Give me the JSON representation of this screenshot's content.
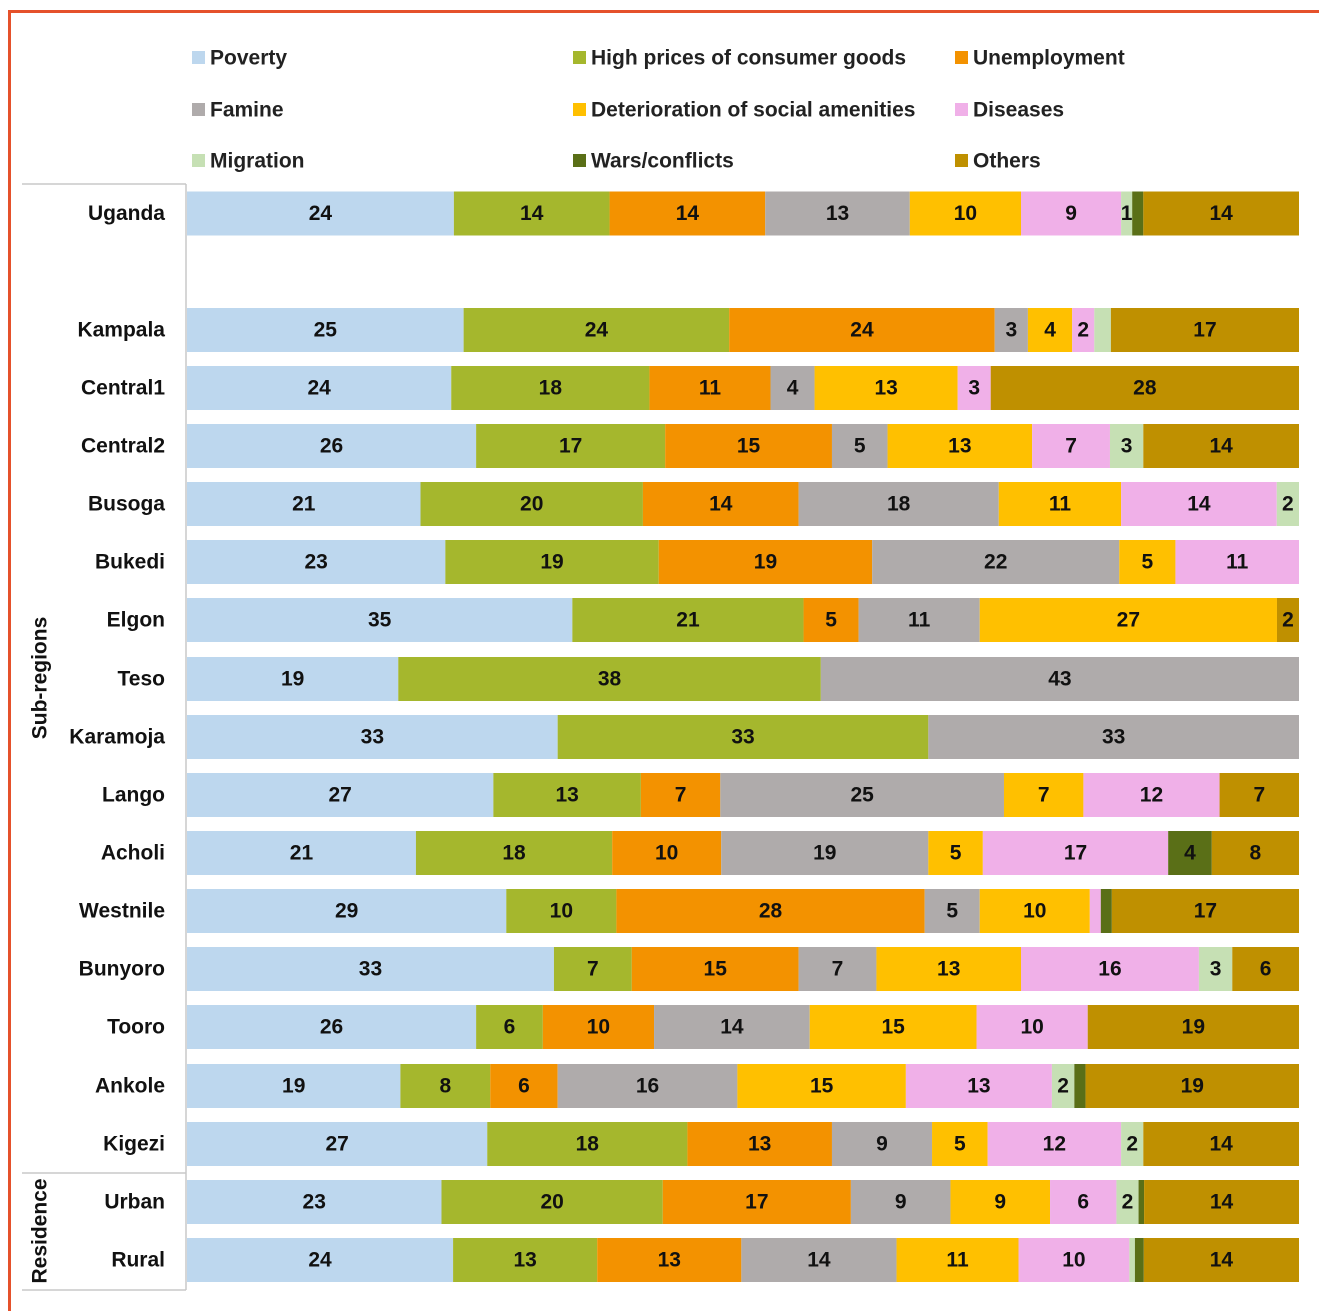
{
  "chart_data": {
    "type": "bar",
    "orientation": "horizontal",
    "stacked": true,
    "legend_position": "top",
    "grid": false,
    "legend": [
      {
        "name": "Poverty",
        "color": "#bdd7ee"
      },
      {
        "name": "High prices of consumer goods",
        "color": "#a5b72d"
      },
      {
        "name": "Unemployment",
        "color": "#f39200"
      },
      {
        "name": "Famine",
        "color": "#afabab"
      },
      {
        "name": "Deterioration of social amenities",
        "color": "#ffc000"
      },
      {
        "name": "Diseases",
        "color": "#f0b0e8"
      },
      {
        "name": "Migration",
        "color": "#c6e0b4"
      },
      {
        "name": "Wars/conflicts",
        "color": "#5a6f17"
      },
      {
        "name": "Others",
        "color": "#bf9000"
      }
    ],
    "groups": [
      {
        "label": "Sub-regions",
        "from": "Kampala",
        "to": "Kigezi"
      },
      {
        "label": "Residence",
        "from": "Urban",
        "to": "Rural"
      }
    ],
    "rows": [
      {
        "category": "Uganda",
        "values": [
          24,
          14,
          14,
          13,
          10,
          9,
          1,
          1,
          14
        ],
        "labels": [
          "24",
          "14",
          "14",
          "13",
          "10",
          "9",
          "1",
          "",
          "14"
        ]
      },
      {
        "category": "Kampala",
        "values": [
          25,
          24,
          24,
          3,
          4,
          2,
          1.5,
          0,
          17
        ],
        "labels": [
          "25",
          "24",
          "24",
          "3",
          "4",
          "2",
          "",
          "",
          "17"
        ]
      },
      {
        "category": "Central1",
        "values": [
          24,
          18,
          11,
          4,
          13,
          3,
          0,
          0,
          28
        ],
        "labels": [
          "24",
          "18",
          "11",
          "4",
          "13",
          "3",
          "",
          "",
          "28"
        ]
      },
      {
        "category": "Central2",
        "values": [
          26,
          17,
          15,
          5,
          13,
          7,
          3,
          0,
          14
        ],
        "labels": [
          "26",
          "17",
          "15",
          "5",
          "13",
          "7",
          "3",
          "",
          "14"
        ]
      },
      {
        "category": "Busoga",
        "values": [
          21,
          20,
          14,
          18,
          11,
          14,
          2,
          0,
          0
        ],
        "labels": [
          "21",
          "20",
          "14",
          "18",
          "11",
          "14",
          "2",
          "",
          ""
        ]
      },
      {
        "category": "Bukedi",
        "values": [
          23,
          19,
          19,
          22,
          5,
          11,
          0,
          0,
          0
        ],
        "labels": [
          "23",
          "19",
          "19",
          "22",
          "5",
          "11",
          "",
          "",
          ""
        ]
      },
      {
        "category": "Elgon",
        "values": [
          35,
          21,
          5,
          11,
          27,
          0,
          0,
          0,
          2
        ],
        "labels": [
          "35",
          "21",
          "5",
          "11",
          "27",
          "",
          "",
          "",
          "2"
        ]
      },
      {
        "category": "Teso",
        "values": [
          19,
          38,
          0,
          43,
          0,
          0,
          0,
          0,
          0
        ],
        "labels": [
          "19",
          "38",
          "",
          "43",
          "",
          "",
          "",
          "",
          ""
        ]
      },
      {
        "category": "Karamoja",
        "values": [
          33,
          33,
          0,
          33,
          0,
          0,
          0,
          0,
          0
        ],
        "labels": [
          "33",
          "33",
          "",
          "33",
          "",
          "",
          "",
          "",
          ""
        ]
      },
      {
        "category": "Lango",
        "values": [
          27,
          13,
          7,
          25,
          7,
          12,
          0,
          0,
          7
        ],
        "labels": [
          "27",
          "13",
          "7",
          "25",
          "7",
          "12",
          "",
          "",
          "7"
        ]
      },
      {
        "category": "Acholi",
        "values": [
          21,
          18,
          10,
          19,
          5,
          17,
          0,
          4,
          8
        ],
        "labels": [
          "21",
          "18",
          "10",
          "19",
          "5",
          "17",
          "",
          "4",
          "8"
        ]
      },
      {
        "category": "Westnile",
        "values": [
          29,
          10,
          28,
          5,
          10,
          1,
          0,
          1,
          17
        ],
        "labels": [
          "29",
          "10",
          "28",
          "5",
          "10",
          "",
          "",
          "",
          "17"
        ]
      },
      {
        "category": "Bunyoro",
        "values": [
          33,
          7,
          15,
          7,
          13,
          16,
          3,
          0,
          6
        ],
        "labels": [
          "33",
          "7",
          "15",
          "7",
          "13",
          "16",
          "3",
          "",
          "6"
        ]
      },
      {
        "category": "Tooro",
        "values": [
          26,
          6,
          10,
          14,
          15,
          10,
          0,
          0,
          19
        ],
        "labels": [
          "26",
          "6",
          "10",
          "14",
          "15",
          "10",
          "",
          "",
          "19"
        ]
      },
      {
        "category": "Ankole",
        "values": [
          19,
          8,
          6,
          16,
          15,
          13,
          2,
          1,
          19
        ],
        "labels": [
          "19",
          "8",
          "6",
          "16",
          "15",
          "13",
          "2",
          "",
          "19"
        ]
      },
      {
        "category": "Kigezi",
        "values": [
          27,
          18,
          13,
          9,
          5,
          12,
          2,
          0,
          14
        ],
        "labels": [
          "27",
          "18",
          "13",
          "9",
          "5",
          "12",
          "2",
          "",
          "14"
        ]
      },
      {
        "category": "Urban",
        "values": [
          23,
          20,
          17,
          9,
          9,
          6,
          2,
          0.5,
          14
        ],
        "labels": [
          "23",
          "20",
          "17",
          "9",
          "9",
          "6",
          "2",
          "",
          "14"
        ]
      },
      {
        "category": "Rural",
        "values": [
          24,
          13,
          13,
          14,
          11,
          10,
          0.5,
          0.8,
          14
        ],
        "labels": [
          "24",
          "13",
          "13",
          "14",
          "11",
          "10",
          "",
          "",
          "14"
        ]
      }
    ]
  }
}
